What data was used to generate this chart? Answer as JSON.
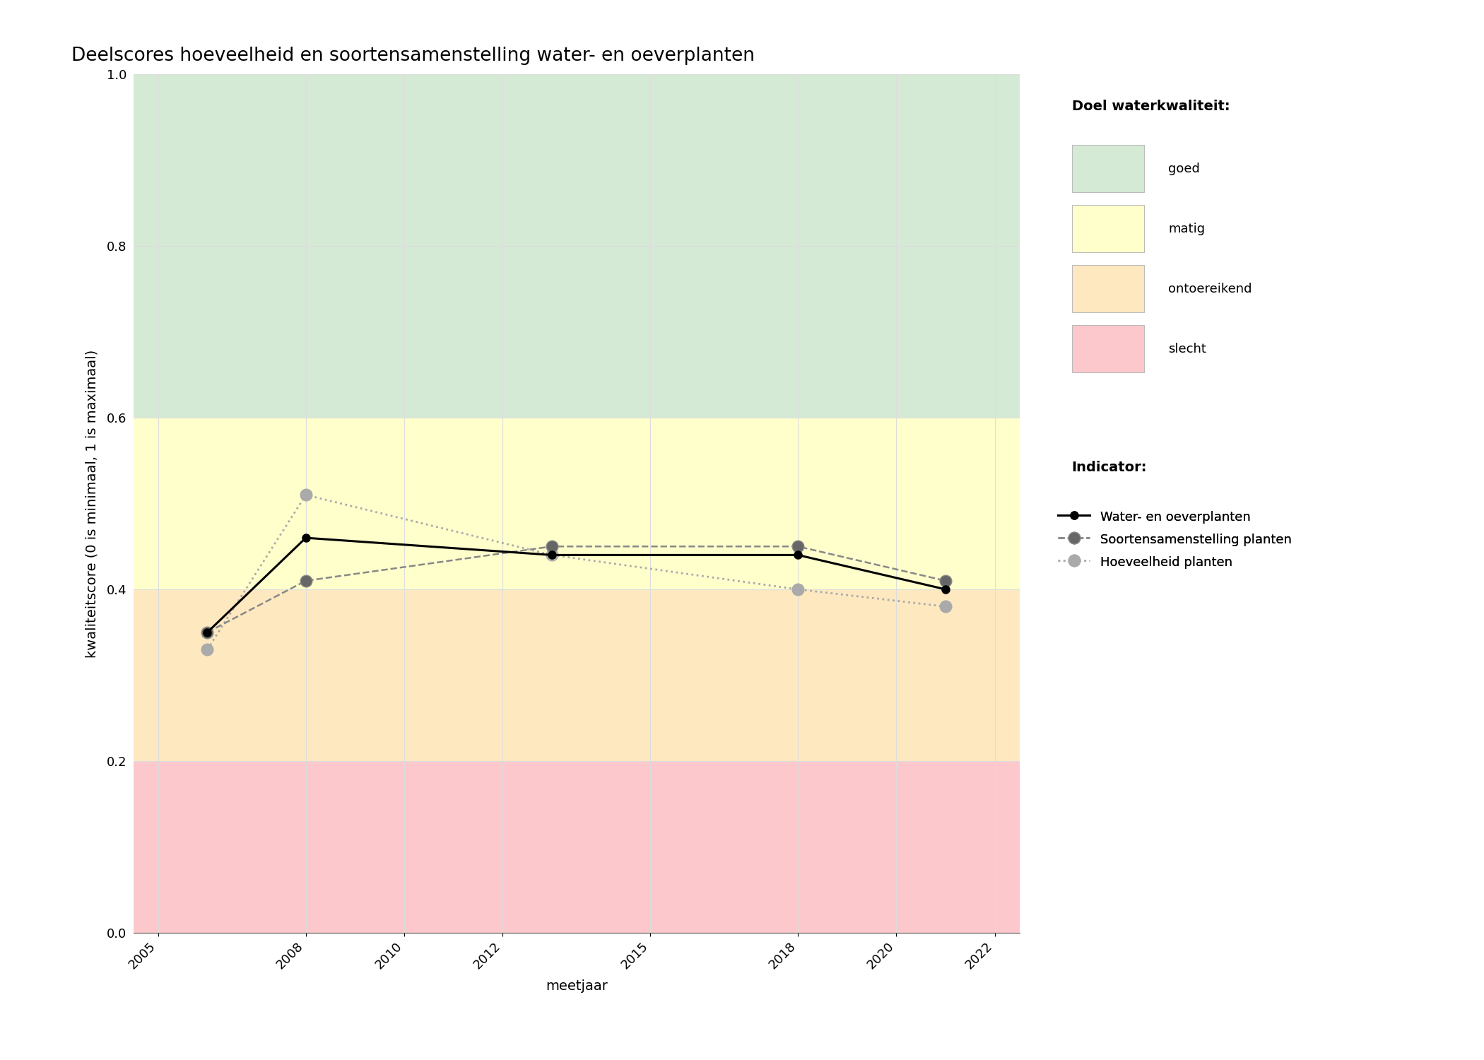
{
  "title": "Deelscores hoeveelheid en soortensamenstelling water- en oeverplanten",
  "xlabel": "meetjaar",
  "ylabel": "kwaliteitscore (0 is minimaal, 1 is maximaal)",
  "xlim": [
    2004.5,
    2022.5
  ],
  "ylim": [
    0.0,
    1.0
  ],
  "xticks": [
    2005,
    2008,
    2010,
    2012,
    2015,
    2018,
    2020,
    2022
  ],
  "yticks": [
    0.0,
    0.2,
    0.4,
    0.6,
    0.8,
    1.0
  ],
  "bg_color": "#ffffff",
  "plot_bg": "#ffffff",
  "zones": [
    {
      "label": "goed",
      "ymin": 0.6,
      "ymax": 1.0,
      "color": "#d5ead4"
    },
    {
      "label": "matig",
      "ymin": 0.4,
      "ymax": 0.6,
      "color": "#ffffcc"
    },
    {
      "label": "ontoereikend",
      "ymin": 0.2,
      "ymax": 0.4,
      "color": "#fde8c0"
    },
    {
      "label": "slecht",
      "ymin": 0.0,
      "ymax": 0.2,
      "color": "#fcc8cc"
    }
  ],
  "series": {
    "water_oever": {
      "label": "Water- en oeverplanten",
      "x": [
        2006,
        2008,
        2013,
        2018,
        2021
      ],
      "y": [
        0.35,
        0.46,
        0.44,
        0.44,
        0.4
      ],
      "color": "#000000",
      "linestyle": "solid",
      "linewidth": 2.2,
      "marker": "o",
      "markersize": 8,
      "markerfacecolor": "#000000",
      "markeredgecolor": "#000000",
      "zorder": 5
    },
    "soorten": {
      "label": "Soortensamenstelling planten",
      "x": [
        2006,
        2008,
        2013,
        2018,
        2021
      ],
      "y": [
        0.35,
        0.41,
        0.45,
        0.45,
        0.41
      ],
      "color": "#888888",
      "linestyle": "dashed",
      "linewidth": 1.8,
      "marker": "o",
      "markersize": 12,
      "markerfacecolor": "#666666",
      "markeredgecolor": "#888888",
      "zorder": 4
    },
    "hoeveelheid": {
      "label": "Hoeveelheid planten",
      "x": [
        2006,
        2008,
        2013,
        2018,
        2021
      ],
      "y": [
        0.33,
        0.51,
        0.44,
        0.4,
        0.38
      ],
      "color": "#aaaaaa",
      "linestyle": "dotted",
      "linewidth": 2.0,
      "marker": "o",
      "markersize": 12,
      "markerfacecolor": "#aaaaaa",
      "markeredgecolor": "#aaaaaa",
      "zorder": 3
    }
  },
  "legend_title_quality": "Doel waterkwaliteit:",
  "legend_title_indicator": "Indicator:",
  "grid_color": "#dddddd",
  "title_fontsize": 19,
  "label_fontsize": 14,
  "tick_fontsize": 13,
  "legend_fontsize": 13,
  "legend_title_fontsize": 14
}
